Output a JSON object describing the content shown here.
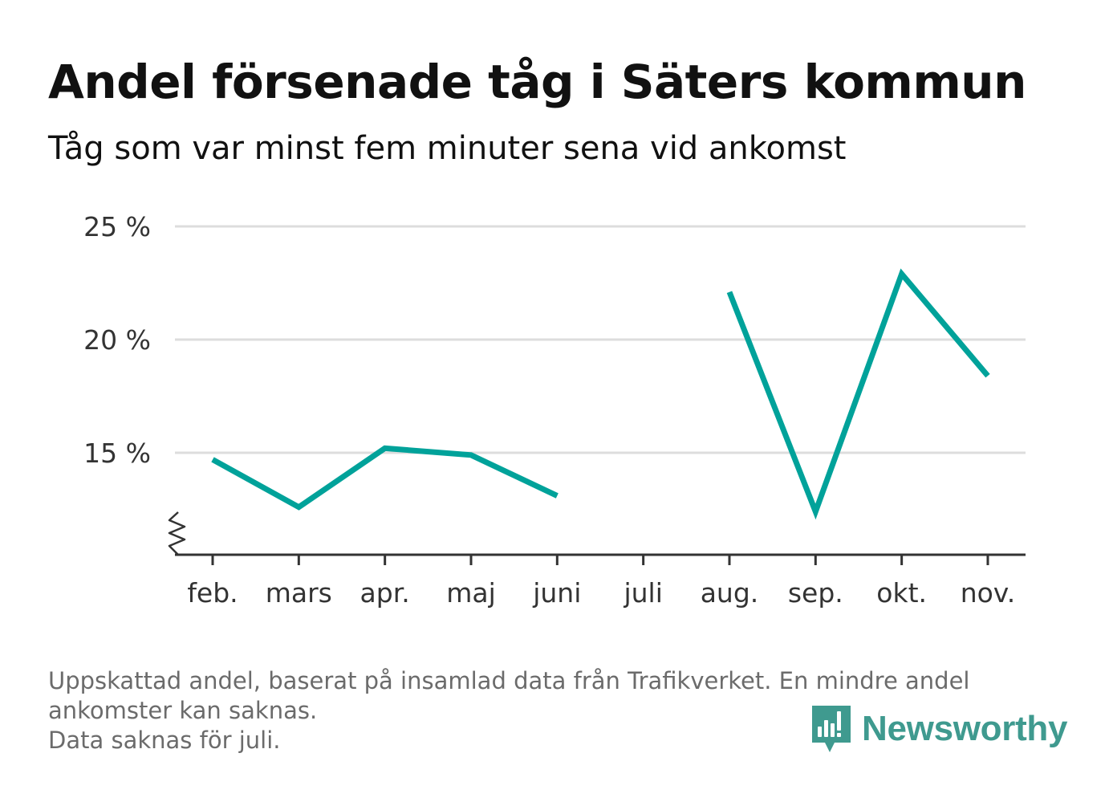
{
  "title": "Andel försenade tåg i Säters kommun",
  "subtitle": "Tåg som var minst fem minuter sena vid ankomst",
  "footnote": {
    "line1": "Uppskattad andel, baserat på insamlad data från Trafikverket. En mindre andel",
    "line2": "ankomster kan saknas.",
    "line3": "Data saknas för juli."
  },
  "logo": {
    "text": "Newsworthy",
    "icon": "newsworthy-logo-icon"
  },
  "colors": {
    "line": "#00a29a",
    "grid": "#dddddd",
    "axis": "#333333"
  },
  "chart_data": {
    "type": "line",
    "title": "Andel försenade tåg i Säters kommun",
    "subtitle": "Tåg som var minst fem minuter sena vid ankomst",
    "categories": [
      "feb.",
      "mars",
      "apr.",
      "maj",
      "juni",
      "juli",
      "aug.",
      "sep.",
      "okt.",
      "nov."
    ],
    "values": [
      14.7,
      12.6,
      15.2,
      14.9,
      13.1,
      null,
      22.1,
      12.4,
      22.9,
      18.4
    ],
    "y_ticks": [
      15,
      20,
      25
    ],
    "y_tick_labels": [
      "15 %",
      "20 %",
      "25 %"
    ],
    "ylim": [
      10.5,
      25
    ],
    "y_axis_break": true,
    "grid": true,
    "legend": "none"
  }
}
